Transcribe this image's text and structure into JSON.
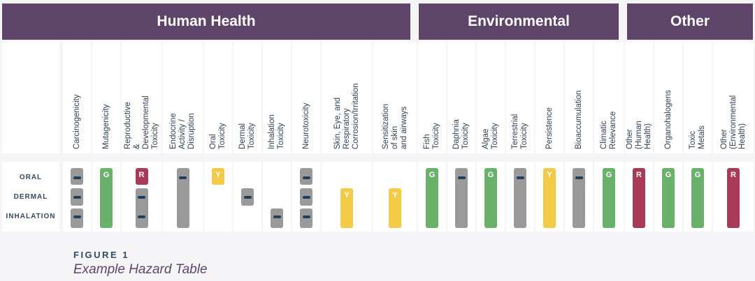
{
  "groups": [
    {
      "name": "Human Health"
    },
    {
      "name": "Environmental"
    },
    {
      "name": "Other"
    }
  ],
  "row_labels": [
    "ORAL",
    "DERMAL",
    "INHALATION"
  ],
  "colors": {
    "G": "#6ab26b",
    "R": "#a93a5a",
    "Y": "#f2cb49",
    "gray": "#9a9a9a",
    "dash": "#1f3f5c"
  },
  "columns": [
    {
      "label": "Carcinogenicity",
      "marks": [
        {
          "c": "gray",
          "t": "",
          "d": true,
          "s": 0,
          "e": 0
        },
        {
          "c": "gray",
          "t": "",
          "d": true,
          "s": 1,
          "e": 1
        },
        {
          "c": "gray",
          "t": "",
          "d": true,
          "s": 2,
          "e": 2
        }
      ]
    },
    {
      "label": "Mutagenicity",
      "marks": [
        {
          "c": "G",
          "t": "G",
          "s": 0,
          "e": 2
        }
      ]
    },
    {
      "label": "Reproductive &\nDevelopmental Toxicity",
      "marks": [
        {
          "c": "R",
          "t": "R",
          "s": 0,
          "e": 0
        },
        {
          "c": "gray",
          "t": "",
          "d": true,
          "s": 1,
          "e": 2
        }
      ]
    },
    {
      "label": "Endocrine Activity /\nDisruption",
      "marks": [
        {
          "c": "gray",
          "t": "",
          "d": true,
          "s": 0,
          "e": 2
        }
      ]
    },
    {
      "label": "Oral Toxicity",
      "marks": [
        {
          "c": "Y",
          "t": "Y",
          "s": 0,
          "e": 0
        }
      ]
    },
    {
      "label": "Dermal Toxicity",
      "marks": [
        {
          "c": "gray",
          "t": "",
          "d": true,
          "s": 1,
          "e": 1
        }
      ]
    },
    {
      "label": "Inhalation Toxicity",
      "marks": [
        {
          "c": "gray",
          "t": "",
          "d": true,
          "s": 2,
          "e": 2
        }
      ]
    },
    {
      "label": "Neurotoxicity",
      "marks": [
        {
          "c": "gray",
          "t": "",
          "d": true,
          "s": 0,
          "e": 0
        },
        {
          "c": "gray",
          "t": "",
          "d": true,
          "s": 1,
          "e": 1
        },
        {
          "c": "gray",
          "t": "",
          "d": true,
          "s": 2,
          "e": 2
        }
      ]
    },
    {
      "label": "Skin, Eye, and\nRespiratory\nCorrosion/Irritation",
      "marks": [
        {
          "c": "Y",
          "t": "Y",
          "s": 1,
          "e": 2
        }
      ]
    },
    {
      "label": "Sensitization of skin\nand airways",
      "marks": [
        {
          "c": "Y",
          "t": "Y",
          "s": 1,
          "e": 2
        }
      ]
    },
    {
      "label": "Fish Toxicity",
      "marks": [
        {
          "c": "G",
          "t": "G",
          "s": 0,
          "e": 2
        }
      ]
    },
    {
      "label": "Daphnia Toxicity",
      "marks": [
        {
          "c": "gray",
          "t": "",
          "d": true,
          "s": 0,
          "e": 2
        }
      ]
    },
    {
      "label": "Algae Toxicity",
      "marks": [
        {
          "c": "G",
          "t": "G",
          "s": 0,
          "e": 2
        }
      ]
    },
    {
      "label": "Terrestrial Toxicity",
      "marks": [
        {
          "c": "gray",
          "t": "",
          "d": true,
          "s": 0,
          "e": 2
        }
      ]
    },
    {
      "label": "Persistence",
      "marks": [
        {
          "c": "Y",
          "t": "Y",
          "s": 0,
          "e": 2
        }
      ]
    },
    {
      "label": "Bioaccumulation",
      "marks": [
        {
          "c": "gray",
          "t": "",
          "d": true,
          "s": 0,
          "e": 2
        }
      ]
    },
    {
      "label": "Climatic Relevance",
      "marks": [
        {
          "c": "G",
          "t": "G",
          "s": 0,
          "e": 2
        }
      ]
    },
    {
      "label": "Other (Human Health)",
      "marks": [
        {
          "c": "R",
          "t": "R",
          "s": 0,
          "e": 2
        }
      ]
    },
    {
      "label": "Organohalogens",
      "marks": [
        {
          "c": "G",
          "t": "G",
          "s": 0,
          "e": 2
        }
      ]
    },
    {
      "label": "Toxic Metals",
      "marks": [
        {
          "c": "G",
          "t": "G",
          "s": 0,
          "e": 2
        }
      ]
    },
    {
      "label": "Other\n(Environmental Health)",
      "marks": [
        {
          "c": "R",
          "t": "R",
          "s": 0,
          "e": 2
        }
      ]
    }
  ],
  "caption": {
    "label": "FIGURE 1",
    "title": "Example Hazard Table"
  }
}
